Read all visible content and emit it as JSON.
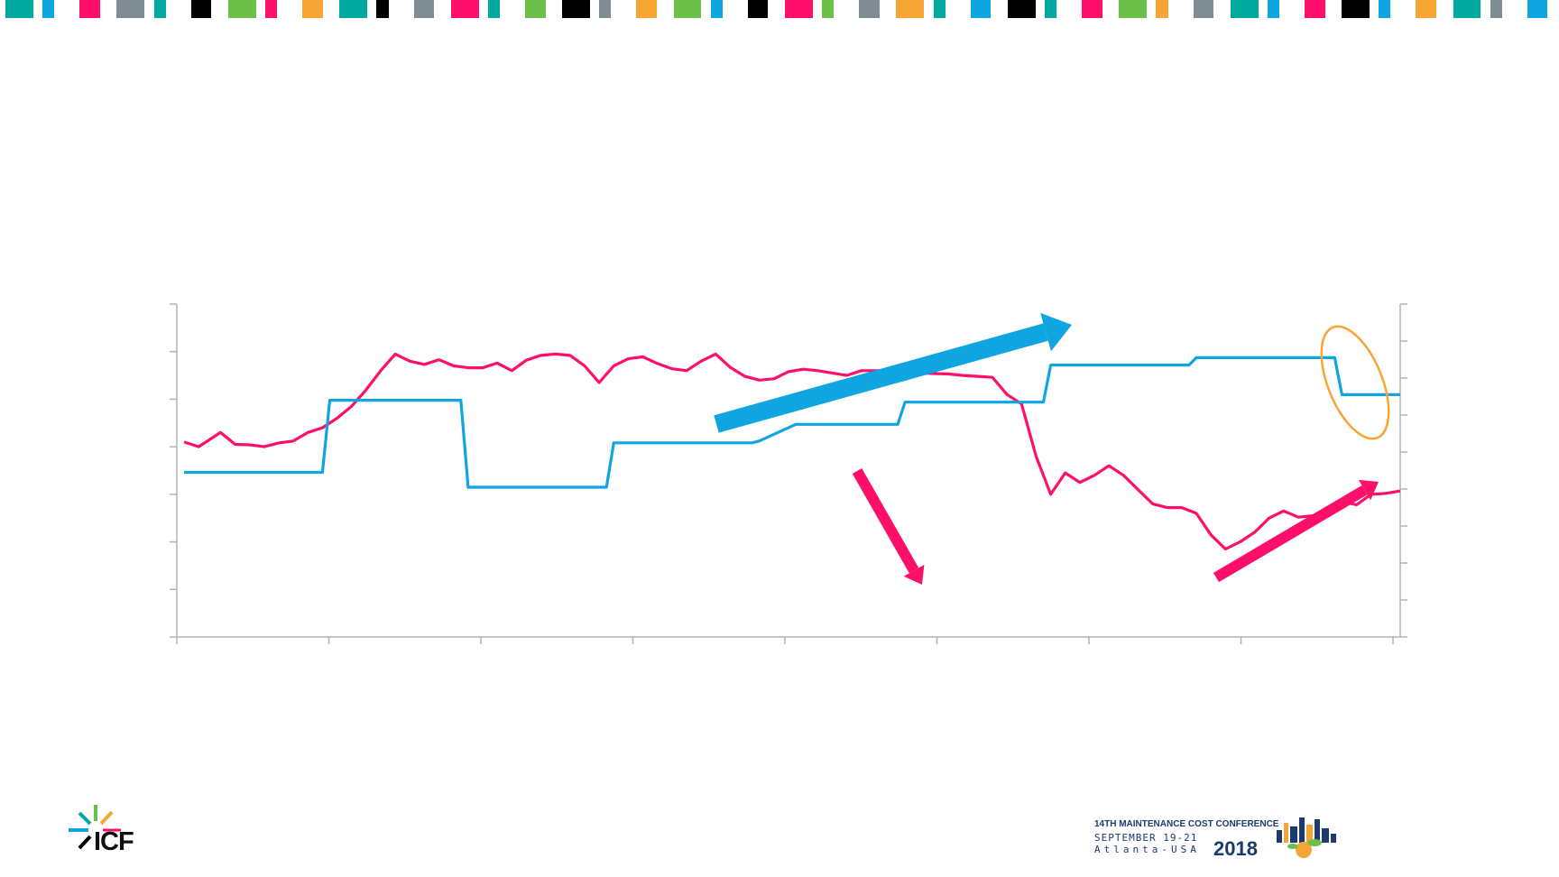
{
  "colors": {
    "pink": "#ff0f6a",
    "blue": "#0ea5e0",
    "teal": "#00a99d",
    "grey": "#7f8c93",
    "black": "#000000",
    "orange": "#f7a535",
    "green": "#6cc04a",
    "axis": "#b3b3b3"
  },
  "top_bar": {
    "pattern": [
      "teal",
      "blue",
      "pink",
      "grey",
      "teal",
      "black",
      "green",
      "pink",
      "orange",
      "teal",
      "black",
      "grey",
      "pink",
      "teal",
      "green",
      "black",
      "grey",
      "orange",
      "green",
      "blue",
      "black",
      "pink",
      "green",
      "grey",
      "orange",
      "teal",
      "blue",
      "black",
      "teal",
      "pink",
      "green",
      "orange",
      "grey",
      "teal",
      "blue",
      "pink",
      "black",
      "blue",
      "orange",
      "teal",
      "grey",
      "blue"
    ]
  },
  "chart_data": {
    "type": "line",
    "title": "",
    "xlabel": "",
    "ylabel": "",
    "grid": false,
    "legend": "none",
    "x_range": [
      0,
      168
    ],
    "left_y_range": [
      0,
      7
    ],
    "right_y_range": [
      0,
      9
    ],
    "left_tick_count": 7,
    "right_tick_count": 9,
    "x_tick_count": 8,
    "series": [
      {
        "color": "pink",
        "axis": "left",
        "points": [
          [
            1,
            4.1
          ],
          [
            3,
            4.0
          ],
          [
            6,
            4.3
          ],
          [
            8,
            4.05
          ],
          [
            10,
            4.04
          ],
          [
            12,
            4.0
          ],
          [
            14,
            4.08
          ],
          [
            16,
            4.12
          ],
          [
            18,
            4.3
          ],
          [
            20,
            4.4
          ],
          [
            22,
            4.6
          ],
          [
            24,
            4.85
          ],
          [
            26,
            5.2
          ],
          [
            28,
            5.6
          ],
          [
            30,
            5.95
          ],
          [
            32,
            5.8
          ],
          [
            34,
            5.73
          ],
          [
            36,
            5.83
          ],
          [
            38,
            5.7
          ],
          [
            40,
            5.66
          ],
          [
            42,
            5.66
          ],
          [
            44,
            5.76
          ],
          [
            46,
            5.6
          ],
          [
            48,
            5.82
          ],
          [
            50,
            5.92
          ],
          [
            52,
            5.95
          ],
          [
            54,
            5.92
          ],
          [
            56,
            5.7
          ],
          [
            58,
            5.35
          ],
          [
            60,
            5.7
          ],
          [
            62,
            5.85
          ],
          [
            64,
            5.89
          ],
          [
            66,
            5.75
          ],
          [
            68,
            5.64
          ],
          [
            70,
            5.6
          ],
          [
            72,
            5.8
          ],
          [
            74,
            5.95
          ],
          [
            76,
            5.67
          ],
          [
            78,
            5.48
          ],
          [
            80,
            5.4
          ],
          [
            82,
            5.43
          ],
          [
            84,
            5.58
          ],
          [
            86,
            5.63
          ],
          [
            88,
            5.6
          ],
          [
            90,
            5.55
          ],
          [
            92,
            5.5
          ],
          [
            94,
            5.6
          ],
          [
            96,
            5.6
          ],
          [
            98,
            5.6
          ],
          [
            100,
            5.6
          ],
          [
            102,
            5.55
          ],
          [
            104,
            5.54
          ],
          [
            106,
            5.53
          ],
          [
            108,
            5.5
          ],
          [
            110,
            5.48
          ],
          [
            112,
            5.46
          ],
          [
            114,
            5.1
          ],
          [
            116,
            4.9
          ],
          [
            118,
            3.8
          ],
          [
            120,
            3.0
          ],
          [
            122,
            3.45
          ],
          [
            124,
            3.25
          ],
          [
            126,
            3.4
          ],
          [
            128,
            3.6
          ],
          [
            130,
            3.4
          ],
          [
            132,
            3.1
          ],
          [
            134,
            2.8
          ],
          [
            136,
            2.72
          ],
          [
            138,
            2.72
          ],
          [
            140,
            2.6
          ],
          [
            142,
            2.15
          ],
          [
            144,
            1.85
          ],
          [
            146,
            2.0
          ],
          [
            148,
            2.2
          ],
          [
            150,
            2.5
          ],
          [
            152,
            2.65
          ],
          [
            154,
            2.52
          ],
          [
            156,
            2.55
          ],
          [
            158,
            2.6
          ],
          [
            160,
            2.85
          ],
          [
            162,
            2.78
          ],
          [
            164,
            3.0
          ],
          [
            166,
            3.02
          ],
          [
            168,
            3.07
          ]
        ]
      },
      {
        "color": "blue",
        "axis": "right",
        "step": true,
        "points": [
          [
            1,
            4.45
          ],
          [
            20,
            4.45
          ],
          [
            21,
            6.4
          ],
          [
            39,
            6.4
          ],
          [
            40,
            4.05
          ],
          [
            59,
            4.05
          ],
          [
            60,
            5.25
          ],
          [
            79,
            5.25
          ],
          [
            80,
            5.3
          ],
          [
            85,
            5.75
          ],
          [
            99,
            5.75
          ],
          [
            100,
            6.35
          ],
          [
            119,
            6.35
          ],
          [
            120,
            7.35
          ],
          [
            139,
            7.35
          ],
          [
            140,
            7.55
          ],
          [
            159,
            7.55
          ],
          [
            160,
            6.55
          ],
          [
            168,
            6.55
          ]
        ]
      }
    ],
    "annotations": [
      {
        "type": "arrow",
        "color": "blue",
        "direction": "up-right"
      },
      {
        "type": "arrow",
        "color": "pink",
        "direction": "down-right"
      },
      {
        "type": "arrow",
        "color": "pink",
        "direction": "up-right"
      },
      {
        "type": "ellipse",
        "color": "orange",
        "target": "blue series final drop"
      }
    ]
  },
  "footer": {
    "left_logo_text": "ICF",
    "conference": {
      "line1": "14TH MAINTENANCE COST CONFERENCE",
      "line2": "SEPTEMBER 19-21",
      "line3": "Atlanta-USA",
      "year": "2018"
    }
  }
}
